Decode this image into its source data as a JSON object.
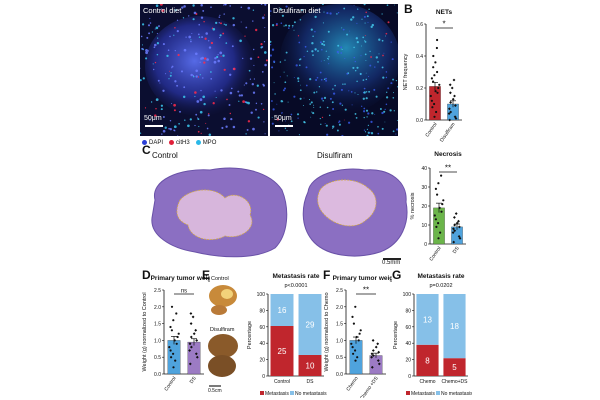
{
  "panels": {
    "A": {
      "letter": "A",
      "left_title": "Control diet",
      "right_title": "Disulfiram diet",
      "scalebar_left": "50μm",
      "scalebar_right": "50μm",
      "legend": [
        {
          "label": "DAPI",
          "color": "#2b3fd6"
        },
        {
          "label": "citH3",
          "color": "#e0203a"
        },
        {
          "label": "MPO",
          "color": "#2ab8e8"
        }
      ]
    },
    "B": {
      "letter": "B",
      "title": "NETs",
      "ylabel": "NET frequency",
      "sig": "*"
    },
    "C": {
      "letter": "C",
      "left_title": "Control",
      "right_title": "Disulfiram",
      "scalebar": "0.5mm",
      "chart_title": "Necrosis",
      "ylabel": "% necrosis",
      "sig": "**"
    },
    "D": {
      "letter": "D",
      "title": "Primary tumor weight",
      "ylabel": "Weight (g) normalized to Control",
      "sig": "ns"
    },
    "E": {
      "letter": "E",
      "img_label_top": "Control",
      "img_label_bottom": "Disulfiram",
      "scalebar": "0.5cm",
      "title": "Metastasis rate",
      "pvalue": "p<0.0001",
      "ylabel": "Percentage",
      "legend_met": "Metastasis",
      "legend_nomet": "No metastasis"
    },
    "F": {
      "letter": "F",
      "title": "Primary tumor weight",
      "ylabel": "Weight (g) normalized to Chemo",
      "sig": "**"
    },
    "G": {
      "letter": "G",
      "title": "Metastasis rate",
      "pvalue": "p=0.0202",
      "ylabel": "Percentage",
      "legend_met": "Metastasis",
      "legend_nomet": "No metastasis"
    }
  },
  "colors": {
    "red": "#c0262d",
    "blue": "#4fa3dd",
    "green": "#6bb54a",
    "purple": "#9c7bc4",
    "lightblue": "#86c0e8"
  },
  "chart_data": [
    {
      "id": "B",
      "type": "bar",
      "title": "NETs",
      "ylabel": "NET frequency",
      "categories": [
        "Control",
        "Disulfiram"
      ],
      "values": [
        0.21,
        0.1
      ],
      "errors": [
        0.025,
        0.02
      ],
      "ylim": [
        0,
        0.6
      ],
      "yticks": [
        0,
        0.2,
        0.4,
        0.6
      ],
      "points": [
        [
          0.02,
          0.05,
          0.08,
          0.1,
          0.12,
          0.15,
          0.17,
          0.18,
          0.2,
          0.22,
          0.24,
          0.26,
          0.28,
          0.3,
          0.33,
          0.36,
          0.4,
          0.45,
          0.5
        ],
        [
          0.0,
          0.01,
          0.02,
          0.04,
          0.05,
          0.07,
          0.09,
          0.11,
          0.13,
          0.15,
          0.17,
          0.2,
          0.22,
          0.25
        ]
      ]
    },
    {
      "id": "C",
      "type": "bar",
      "title": "Necrosis",
      "ylabel": "% necrosis",
      "categories": [
        "Control",
        "DS"
      ],
      "values": [
        19,
        9
      ],
      "errors": [
        2.5,
        1.5
      ],
      "ylim": [
        0,
        40
      ],
      "yticks": [
        0,
        10,
        20,
        30,
        40
      ],
      "points": [
        [
          3,
          6,
          9,
          11,
          13,
          15,
          17,
          19,
          21,
          23,
          26,
          29,
          32,
          36
        ],
        [
          1,
          3,
          4,
          6,
          7,
          8,
          9,
          10,
          11,
          12,
          14,
          16
        ]
      ]
    },
    {
      "id": "D",
      "type": "bar",
      "title": "Primary tumor weight",
      "ylabel": "Weight (g) normalized to Control",
      "categories": [
        "Control",
        "DS"
      ],
      "values": [
        1.0,
        0.95
      ],
      "errors": [
        0.12,
        0.1
      ],
      "ylim": [
        0,
        2.5
      ],
      "yticks": [
        0.0,
        0.5,
        1.0,
        1.5,
        2.0,
        2.5
      ],
      "points": [
        [
          0.2,
          0.4,
          0.5,
          0.6,
          0.7,
          0.8,
          0.9,
          1.0,
          1.1,
          1.2,
          1.3,
          1.4,
          1.6,
          1.8,
          2.0
        ],
        [
          0.3,
          0.5,
          0.6,
          0.7,
          0.8,
          0.9,
          1.0,
          1.1,
          1.2,
          1.3,
          1.5,
          1.7,
          1.8
        ]
      ]
    },
    {
      "id": "E",
      "type": "bar",
      "stacked": true,
      "title": "Metastasis rate",
      "ylabel": "Percentage",
      "categories": [
        "Control",
        "DS"
      ],
      "series": [
        {
          "name": "Metastasis",
          "counts": [
            25,
            10
          ]
        },
        {
          "name": "No metastasis",
          "counts": [
            16,
            29
          ]
        }
      ],
      "ylim": [
        0,
        100
      ],
      "yticks": [
        0,
        20,
        40,
        60,
        80,
        100
      ]
    },
    {
      "id": "F",
      "type": "bar",
      "title": "Primary tumor weight",
      "ylabel": "Weight (g) normalized to Chemo",
      "categories": [
        "Chemo",
        "Chemo +DS"
      ],
      "values": [
        1.0,
        0.55
      ],
      "errors": [
        0.1,
        0.07
      ],
      "ylim": [
        0,
        2.5
      ],
      "yticks": [
        0.0,
        0.5,
        1.0,
        1.5,
        2.0,
        2.5
      ],
      "points": [
        [
          0.4,
          0.5,
          0.6,
          0.7,
          0.8,
          0.9,
          1.0,
          1.1,
          1.2,
          1.3,
          1.5,
          1.7,
          2.0
        ],
        [
          0.2,
          0.3,
          0.4,
          0.5,
          0.55,
          0.6,
          0.65,
          0.7,
          0.8,
          0.9,
          1.0
        ]
      ]
    },
    {
      "id": "G",
      "type": "bar",
      "stacked": true,
      "title": "Metastasis rate",
      "ylabel": "Percentage",
      "categories": [
        "Chemo",
        "Chemo+DS"
      ],
      "series": [
        {
          "name": "Metastasis",
          "counts": [
            8,
            5
          ]
        },
        {
          "name": "No metastasis",
          "counts": [
            13,
            18
          ]
        }
      ],
      "ylim": [
        0,
        100
      ],
      "yticks": [
        0,
        20,
        40,
        60,
        80,
        100
      ]
    }
  ]
}
